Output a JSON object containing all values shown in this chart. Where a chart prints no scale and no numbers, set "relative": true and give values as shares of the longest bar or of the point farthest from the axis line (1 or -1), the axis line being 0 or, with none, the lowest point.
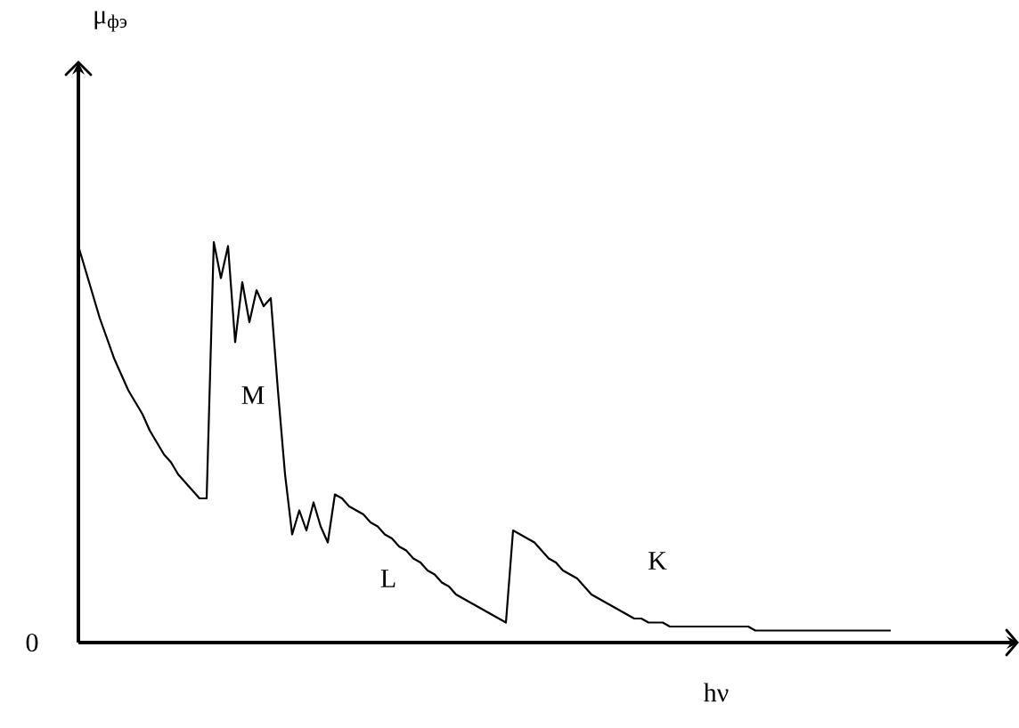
{
  "chart_data": {
    "type": "line",
    "relative": true,
    "xlabel": "hν",
    "color": "#000000",
    "annotations": [
      "M",
      "L",
      "K",
      "0",
      "μ$_{фэ}$"
    ],
    "categories": [
      null,
      null,
      null,
      null,
      null,
      null,
      null,
      null,
      null,
      null,
      null,
      null,
      null,
      null,
      null,
      null,
      null,
      null,
      null,
      null,
      null,
      null,
      null,
      null,
      null,
      null,
      null,
      null,
      null,
      null,
      null,
      null,
      null,
      null,
      null,
      null,
      null,
      null,
      null,
      null,
      null,
      null,
      null,
      null,
      null,
      null,
      null,
      null,
      null,
      null,
      null,
      null,
      null,
      null,
      null,
      null,
      null,
      null,
      null,
      null,
      null,
      null,
      null,
      null,
      null,
      null,
      null,
      null,
      null,
      null,
      null,
      null,
      null,
      null,
      null,
      null,
      null,
      null,
      null,
      null,
      null,
      null,
      null,
      null,
      null,
      null,
      null,
      null,
      null,
      null,
      null,
      null,
      null,
      null,
      null,
      null,
      null,
      null,
      null,
      null,
      null,
      null,
      null,
      null,
      null,
      null,
      null,
      null,
      null,
      null,
      null,
      null,
      null,
      null,
      null
    ],
    "values": [
      0.99,
      0.93,
      0.87,
      0.81,
      0.76,
      0.71,
      0.67,
      0.63,
      0.6,
      0.57,
      0.53,
      0.5,
      0.47,
      0.45,
      0.42,
      0.4,
      0.38,
      0.36,
      0.36,
      1.0,
      0.91,
      0.99,
      0.75,
      0.9,
      0.8,
      0.88,
      0.84,
      0.86,
      0.63,
      0.42,
      0.27,
      0.33,
      0.28,
      0.35,
      0.29,
      0.25,
      0.37,
      0.36,
      0.34,
      0.33,
      0.32,
      0.3,
      0.29,
      0.27,
      0.26,
      0.24,
      0.23,
      0.21,
      0.2,
      0.18,
      0.17,
      0.15,
      0.14,
      0.12,
      0.11,
      0.1,
      0.09,
      0.08,
      0.07,
      0.06,
      0.05,
      0.28,
      0.27,
      0.26,
      0.25,
      0.23,
      0.21,
      0.2,
      0.18,
      0.17,
      0.16,
      0.14,
      0.12,
      0.11,
      0.1,
      0.09,
      0.08,
      0.07,
      0.06,
      0.06,
      0.05,
      0.05,
      0.05,
      0.04,
      0.04,
      0.04,
      0.04,
      0.04,
      0.04,
      0.04,
      0.04,
      0.04,
      0.04,
      0.04,
      0.04,
      0.03,
      0.03,
      0.03,
      0.03,
      0.03,
      0.03,
      0.03,
      0.03,
      0.03,
      0.03,
      0.03,
      0.03,
      0.03,
      0.03,
      0.03,
      0.03,
      0.03,
      0.03,
      0.03,
      0.03
    ]
  }
}
